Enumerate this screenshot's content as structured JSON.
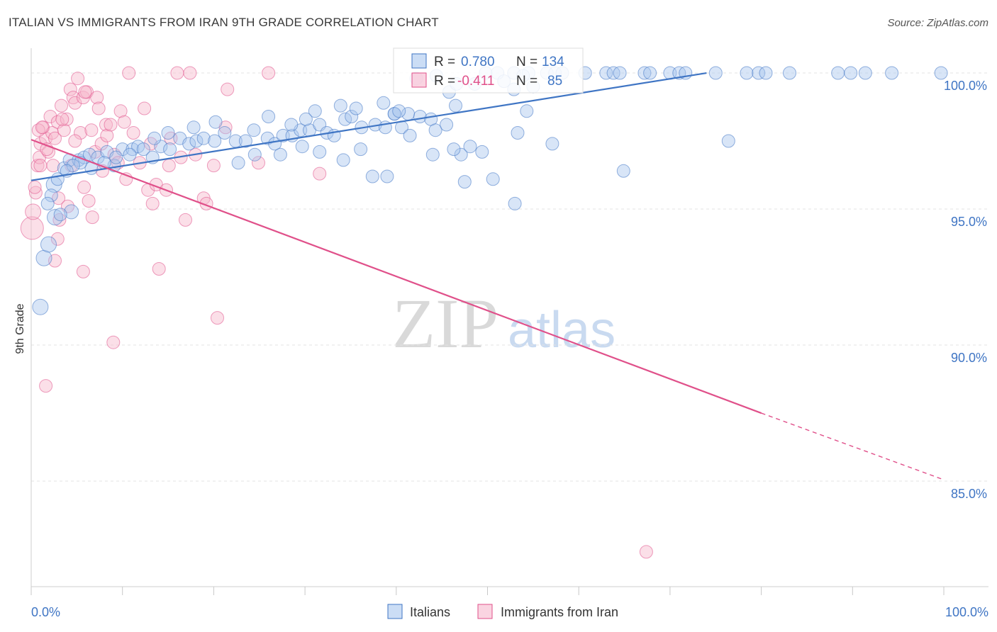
{
  "header": {
    "title": "ITALIAN VS IMMIGRANTS FROM IRAN 9TH GRADE CORRELATION CHART",
    "source": "Source: ZipAtlas.com"
  },
  "watermark": {
    "zip": "ZIP",
    "atlas": "atlas"
  },
  "colors": {
    "blue": "#3f75c4",
    "blue_fill": "#a9c6ee",
    "pink": "#e0508a",
    "pink_fill": "#f6b8cd"
  },
  "stats": {
    "r_label": "R =",
    "n_label": "N =",
    "italians": {
      "r": "0.780",
      "n": "134"
    },
    "iran": {
      "r": "-0.411",
      "n": "85"
    }
  },
  "chart_data": {
    "type": "scatter",
    "title": "ITALIAN VS IMMIGRANTS FROM IRAN 9TH GRADE CORRELATION CHART",
    "xlabel": "",
    "ylabel": "9th Grade",
    "xlim": [
      0,
      100
    ],
    "ylim": [
      80.6,
      100.6
    ],
    "x_tick_labels": [
      "0.0%",
      "100.0%"
    ],
    "y_ticks": [
      100,
      95,
      90,
      85
    ],
    "y_tick_labels": [
      "100.0%",
      "95.0%",
      "90.0%",
      "85.0%"
    ],
    "legend": [
      "Italians",
      "Immigrants from Iran"
    ],
    "trendlines": [
      {
        "series": "Italians",
        "x0": 0,
        "y0": 96.05,
        "x1": 74,
        "y1": 100.0,
        "dashed_to": null
      },
      {
        "series": "Immigrants from Iran",
        "x0": 0,
        "y0": 97.55,
        "x1": 80,
        "y1": 87.5,
        "dashed_x1": 100,
        "dashed_y1": 85.05
      }
    ],
    "series": [
      {
        "name": "Italians",
        "points": [
          [
            1.0,
            91.4,
            11
          ],
          [
            1.4,
            93.2,
            11
          ],
          [
            1.9,
            93.7,
            11
          ],
          [
            2.5,
            95.9,
            11
          ],
          [
            2.6,
            94.7,
            11
          ],
          [
            4.4,
            94.9,
            10
          ],
          [
            2.9,
            96.1,
            9
          ],
          [
            3.6,
            96.5,
            9
          ],
          [
            4.2,
            96.8,
            9
          ],
          [
            5.2,
            96.8,
            9
          ],
          [
            5.8,
            96.9,
            9
          ],
          [
            6.4,
            97.0,
            9
          ],
          [
            7.3,
            96.9,
            9
          ],
          [
            8.3,
            97.1,
            9
          ],
          [
            9.1,
            96.6,
            9
          ],
          [
            10.0,
            97.2,
            9
          ],
          [
            11.1,
            97.2,
            9
          ],
          [
            11.7,
            97.3,
            9
          ],
          [
            12.3,
            97.2,
            9
          ],
          [
            13.3,
            96.9,
            9
          ],
          [
            14.2,
            97.3,
            9
          ],
          [
            15.2,
            97.2,
            9
          ],
          [
            16.3,
            97.6,
            9
          ],
          [
            17.3,
            97.4,
            9
          ],
          [
            18.1,
            97.5,
            9
          ],
          [
            18.9,
            97.6,
            9
          ],
          [
            20.1,
            97.5,
            9
          ],
          [
            21.2,
            97.8,
            9
          ],
          [
            22.4,
            97.5,
            9
          ],
          [
            23.5,
            97.5,
            9
          ],
          [
            24.4,
            97.9,
            9
          ],
          [
            25.9,
            97.6,
            9
          ],
          [
            26.7,
            97.4,
            9
          ],
          [
            27.6,
            97.7,
            9
          ],
          [
            28.6,
            97.7,
            9
          ],
          [
            29.5,
            97.9,
            9
          ],
          [
            30.5,
            97.9,
            9
          ],
          [
            31.6,
            98.1,
            9
          ],
          [
            32.4,
            97.8,
            9
          ],
          [
            33.2,
            97.7,
            9
          ],
          [
            34.4,
            98.3,
            9
          ],
          [
            35.1,
            98.4,
            9
          ],
          [
            36.2,
            98.0,
            9
          ],
          [
            37.7,
            98.1,
            9
          ],
          [
            38.8,
            98.0,
            9
          ],
          [
            39.8,
            98.5,
            9
          ],
          [
            40.6,
            98.0,
            9
          ],
          [
            41.5,
            97.7,
            9
          ],
          [
            42.6,
            98.4,
            9
          ],
          [
            43.8,
            98.3,
            9
          ],
          [
            44.3,
            97.9,
            9
          ],
          [
            45.5,
            98.1,
            9
          ],
          [
            22.7,
            96.7,
            9
          ],
          [
            24.5,
            97.0,
            9
          ],
          [
            27.3,
            97.0,
            9
          ],
          [
            29.7,
            97.3,
            9
          ],
          [
            31.6,
            97.1,
            9
          ],
          [
            34.2,
            96.8,
            9
          ],
          [
            36.1,
            97.2,
            9
          ],
          [
            37.4,
            96.2,
            9
          ],
          [
            39.0,
            96.2,
            9
          ],
          [
            39.8,
            98.5,
            9
          ],
          [
            41.3,
            98.5,
            9
          ],
          [
            44.0,
            97.0,
            9
          ],
          [
            47.1,
            97.0,
            9
          ],
          [
            48.1,
            97.3,
            9
          ],
          [
            46.3,
            97.2,
            9
          ],
          [
            47.5,
            96.0,
            9
          ],
          [
            50.6,
            96.1,
            9
          ],
          [
            46.5,
            98.8,
            9
          ],
          [
            54.3,
            98.6,
            9
          ],
          [
            53.3,
            97.8,
            9
          ],
          [
            55.0,
            99.5,
            9
          ],
          [
            49.8,
            100.0,
            9
          ],
          [
            51.1,
            100.0,
            9
          ],
          [
            52.9,
            100.0,
            9
          ],
          [
            54.5,
            100.0,
            9
          ],
          [
            56.5,
            100.0,
            9
          ],
          [
            57.4,
            100.0,
            9
          ],
          [
            58.2,
            100.0,
            9
          ],
          [
            60.7,
            100.0,
            9
          ],
          [
            63.0,
            100.0,
            9
          ],
          [
            63.8,
            100.0,
            9
          ],
          [
            64.5,
            100.0,
            9
          ],
          [
            67.2,
            100.0,
            9
          ],
          [
            67.8,
            100.0,
            9
          ],
          [
            70.0,
            100.0,
            9
          ],
          [
            71.0,
            100.0,
            9
          ],
          [
            71.7,
            100.0,
            9
          ],
          [
            75.0,
            100.0,
            9
          ],
          [
            78.4,
            100.0,
            9
          ],
          [
            79.7,
            100.0,
            9
          ],
          [
            80.5,
            100.0,
            9
          ],
          [
            83.1,
            100.0,
            9
          ],
          [
            88.4,
            100.0,
            9
          ],
          [
            89.8,
            100.0,
            9
          ],
          [
            91.4,
            100.0,
            9
          ],
          [
            94.3,
            100.0,
            9
          ],
          [
            99.7,
            100.0,
            9
          ],
          [
            42.2,
            99.8,
            9
          ],
          [
            44.4,
            99.9,
            9
          ],
          [
            45.8,
            99.3,
            9
          ],
          [
            46.6,
            99.6,
            9
          ],
          [
            51.8,
            99.7,
            9
          ],
          [
            53.9,
            99.9,
            9
          ],
          [
            52.9,
            99.4,
            9
          ],
          [
            48.6,
            99.6,
            9
          ],
          [
            76.4,
            97.5,
            9
          ],
          [
            64.9,
            96.4,
            9
          ],
          [
            53.0,
            95.2,
            9
          ],
          [
            49.4,
            97.1,
            9
          ],
          [
            57.1,
            97.4,
            9
          ],
          [
            40.3,
            98.6,
            9
          ],
          [
            38.6,
            98.9,
            9
          ],
          [
            35.6,
            98.7,
            9
          ],
          [
            33.9,
            98.8,
            9
          ],
          [
            31.1,
            98.6,
            9
          ],
          [
            30.1,
            98.3,
            9
          ],
          [
            28.5,
            98.1,
            9
          ],
          [
            26.0,
            98.4,
            9
          ],
          [
            20.2,
            98.2,
            9
          ],
          [
            17.8,
            98.0,
            9
          ],
          [
            15.0,
            97.8,
            9
          ],
          [
            13.5,
            97.6,
            9
          ],
          [
            10.8,
            97.0,
            9
          ],
          [
            9.3,
            96.9,
            9
          ],
          [
            8.0,
            96.7,
            9
          ],
          [
            6.6,
            96.5,
            9
          ],
          [
            5.4,
            96.7,
            9
          ],
          [
            4.6,
            96.6,
            9
          ],
          [
            3.9,
            96.4,
            9
          ],
          [
            2.2,
            95.5,
            9
          ],
          [
            3.2,
            94.8,
            9
          ],
          [
            1.8,
            95.2,
            9
          ]
        ]
      },
      {
        "name": "Immigrants from Iran",
        "points": [
          [
            0.1,
            94.3,
            16
          ],
          [
            0.2,
            94.9,
            11
          ],
          [
            0.5,
            95.6,
            9
          ],
          [
            0.4,
            95.8,
            9
          ],
          [
            0.7,
            96.6,
            9
          ],
          [
            0.9,
            96.9,
            9
          ],
          [
            1.0,
            97.4,
            9
          ],
          [
            1.3,
            98.0,
            9
          ],
          [
            1.6,
            97.6,
            9
          ],
          [
            1.9,
            97.1,
            9
          ],
          [
            2.1,
            98.4,
            9
          ],
          [
            2.3,
            97.8,
            9
          ],
          [
            2.4,
            96.6,
            9
          ],
          [
            2.6,
            97.6,
            9
          ],
          [
            2.9,
            98.2,
            9
          ],
          [
            3.0,
            95.4,
            9
          ],
          [
            3.1,
            94.6,
            9
          ],
          [
            3.3,
            98.8,
            9
          ],
          [
            3.6,
            97.9,
            9
          ],
          [
            3.9,
            98.3,
            9
          ],
          [
            4.0,
            95.1,
            9
          ],
          [
            4.3,
            99.4,
            9
          ],
          [
            4.4,
            96.6,
            9
          ],
          [
            4.6,
            99.1,
            9
          ],
          [
            4.8,
            98.9,
            9
          ],
          [
            5.1,
            99.8,
            9
          ],
          [
            5.4,
            97.8,
            9
          ],
          [
            5.7,
            99.1,
            9
          ],
          [
            5.8,
            95.8,
            9
          ],
          [
            6.1,
            99.3,
            9
          ],
          [
            6.3,
            95.3,
            9
          ],
          [
            6.6,
            97.9,
            9
          ],
          [
            6.7,
            94.7,
            9
          ],
          [
            7.0,
            97.1,
            9
          ],
          [
            7.2,
            99.1,
            9
          ],
          [
            7.4,
            98.7,
            9
          ],
          [
            7.7,
            97.4,
            9
          ],
          [
            7.8,
            96.4,
            9
          ],
          [
            8.2,
            98.1,
            9
          ],
          [
            8.3,
            97.7,
            9
          ],
          [
            8.7,
            98.1,
            9
          ],
          [
            9.1,
            97.0,
            9
          ],
          [
            9.5,
            96.7,
            9
          ],
          [
            9.8,
            98.6,
            9
          ],
          [
            10.2,
            98.2,
            9
          ],
          [
            10.4,
            96.1,
            9
          ],
          [
            10.7,
            100.0,
            9
          ],
          [
            11.2,
            97.8,
            9
          ],
          [
            11.9,
            96.7,
            9
          ],
          [
            12.4,
            98.7,
            9
          ],
          [
            12.8,
            95.7,
            9
          ],
          [
            13.1,
            97.4,
            9
          ],
          [
            13.3,
            95.2,
            9
          ],
          [
            13.7,
            95.9,
            9
          ],
          [
            14.0,
            92.8,
            9
          ],
          [
            14.8,
            95.7,
            9
          ],
          [
            15.1,
            96.6,
            9
          ],
          [
            15.3,
            97.6,
            9
          ],
          [
            16.0,
            100.0,
            9
          ],
          [
            16.4,
            96.9,
            9
          ],
          [
            16.9,
            94.6,
            9
          ],
          [
            17.4,
            100.0,
            9
          ],
          [
            18.0,
            97.0,
            9
          ],
          [
            18.9,
            95.4,
            9
          ],
          [
            19.2,
            95.2,
            9
          ],
          [
            20.0,
            96.6,
            9
          ],
          [
            20.4,
            91.0,
            9
          ],
          [
            21.3,
            98.0,
            9
          ],
          [
            21.5,
            99.4,
            9
          ],
          [
            24.9,
            96.7,
            9
          ],
          [
            26.0,
            100.0,
            9
          ],
          [
            31.6,
            96.3,
            9
          ],
          [
            9.0,
            90.1,
            9
          ],
          [
            1.6,
            88.5,
            9
          ],
          [
            2.6,
            93.1,
            9
          ],
          [
            5.7,
            92.7,
            9
          ],
          [
            1.0,
            96.6,
            9
          ],
          [
            1.7,
            97.2,
            9
          ],
          [
            0.8,
            97.9,
            9
          ],
          [
            1.2,
            98.0,
            9
          ],
          [
            3.4,
            98.3,
            9
          ],
          [
            4.8,
            97.5,
            9
          ],
          [
            5.9,
            99.3,
            9
          ],
          [
            2.9,
            93.9,
            9
          ],
          [
            67.4,
            82.4,
            9
          ]
        ]
      }
    ]
  },
  "legend_bottom": {
    "italians": "Italians",
    "iran": "Immigrants from Iran"
  }
}
